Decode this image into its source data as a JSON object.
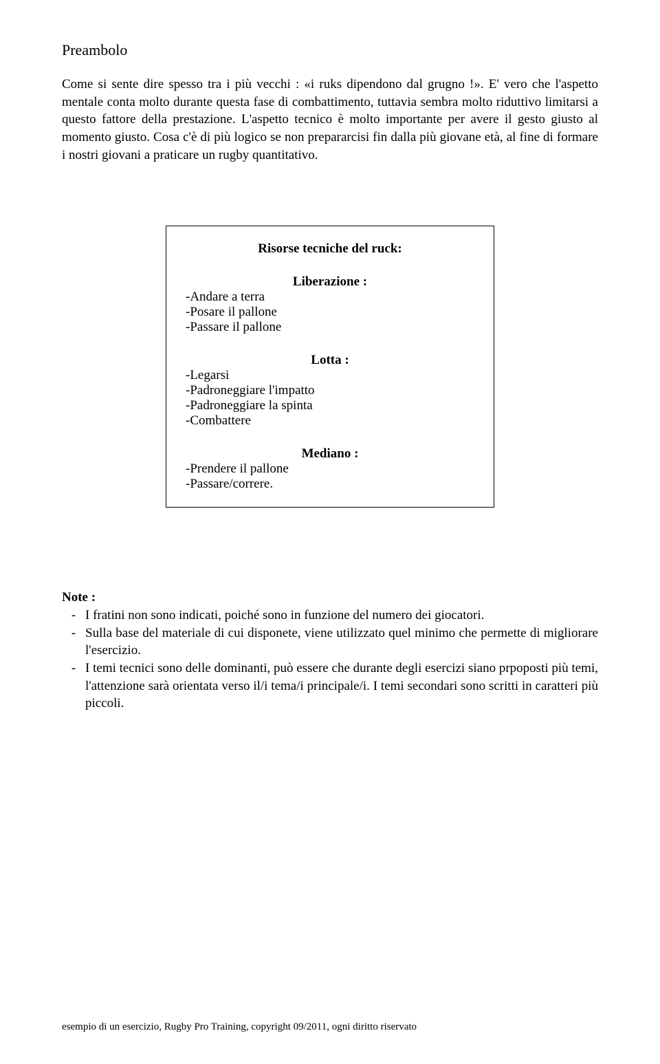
{
  "title": "Preambolo",
  "paragraph": "Come si sente dire spesso tra i più vecchi : «i ruks dipendono dal grugno !». E' vero che l'aspetto mentale conta molto durante questa fase di combattimento, tuttavia sembra molto riduttivo limitarsi a questo fattore della prestazione. L'aspetto tecnico è molto importante per avere il gesto giusto al momento giusto. Cosa c'è di più logico se non prepararcisi fin dalla più giovane età, al fine di formare i nostri giovani a praticare un rugby quantitativo.",
  "box": {
    "title": "Risorse tecniche del ruck:",
    "groups": [
      {
        "head": "Liberazione :",
        "items": [
          "-Andare a terra",
          "-Posare il pallone",
          "-Passare il pallone"
        ]
      },
      {
        "head": "Lotta :",
        "items": [
          "-Legarsi",
          "-Padroneggiare l'impatto",
          "-Padroneggiare la spinta",
          "-Combattere"
        ]
      },
      {
        "head": "Mediano :",
        "items": [
          "-Prendere il pallone",
          "-Passare/correre."
        ]
      }
    ]
  },
  "notes_head": "Note :",
  "notes": [
    "I fratini non sono indicati, poiché sono in funzione del numero dei giocatori.",
    "Sulla base del materiale di cui disponete, viene utilizzato quel minimo che permette di migliorare l'esercizio.",
    "I temi tecnici sono delle dominanti, può essere che durante degli esercizi siano prpoposti più temi, l'attenzione sarà orientata verso il/i tema/i principale/i. I temi secondari sono scritti in caratteri più piccoli."
  ],
  "footer": "esempio di un esercizio, Rugby Pro Training, copyright 09/2011, ogni diritto riservato"
}
